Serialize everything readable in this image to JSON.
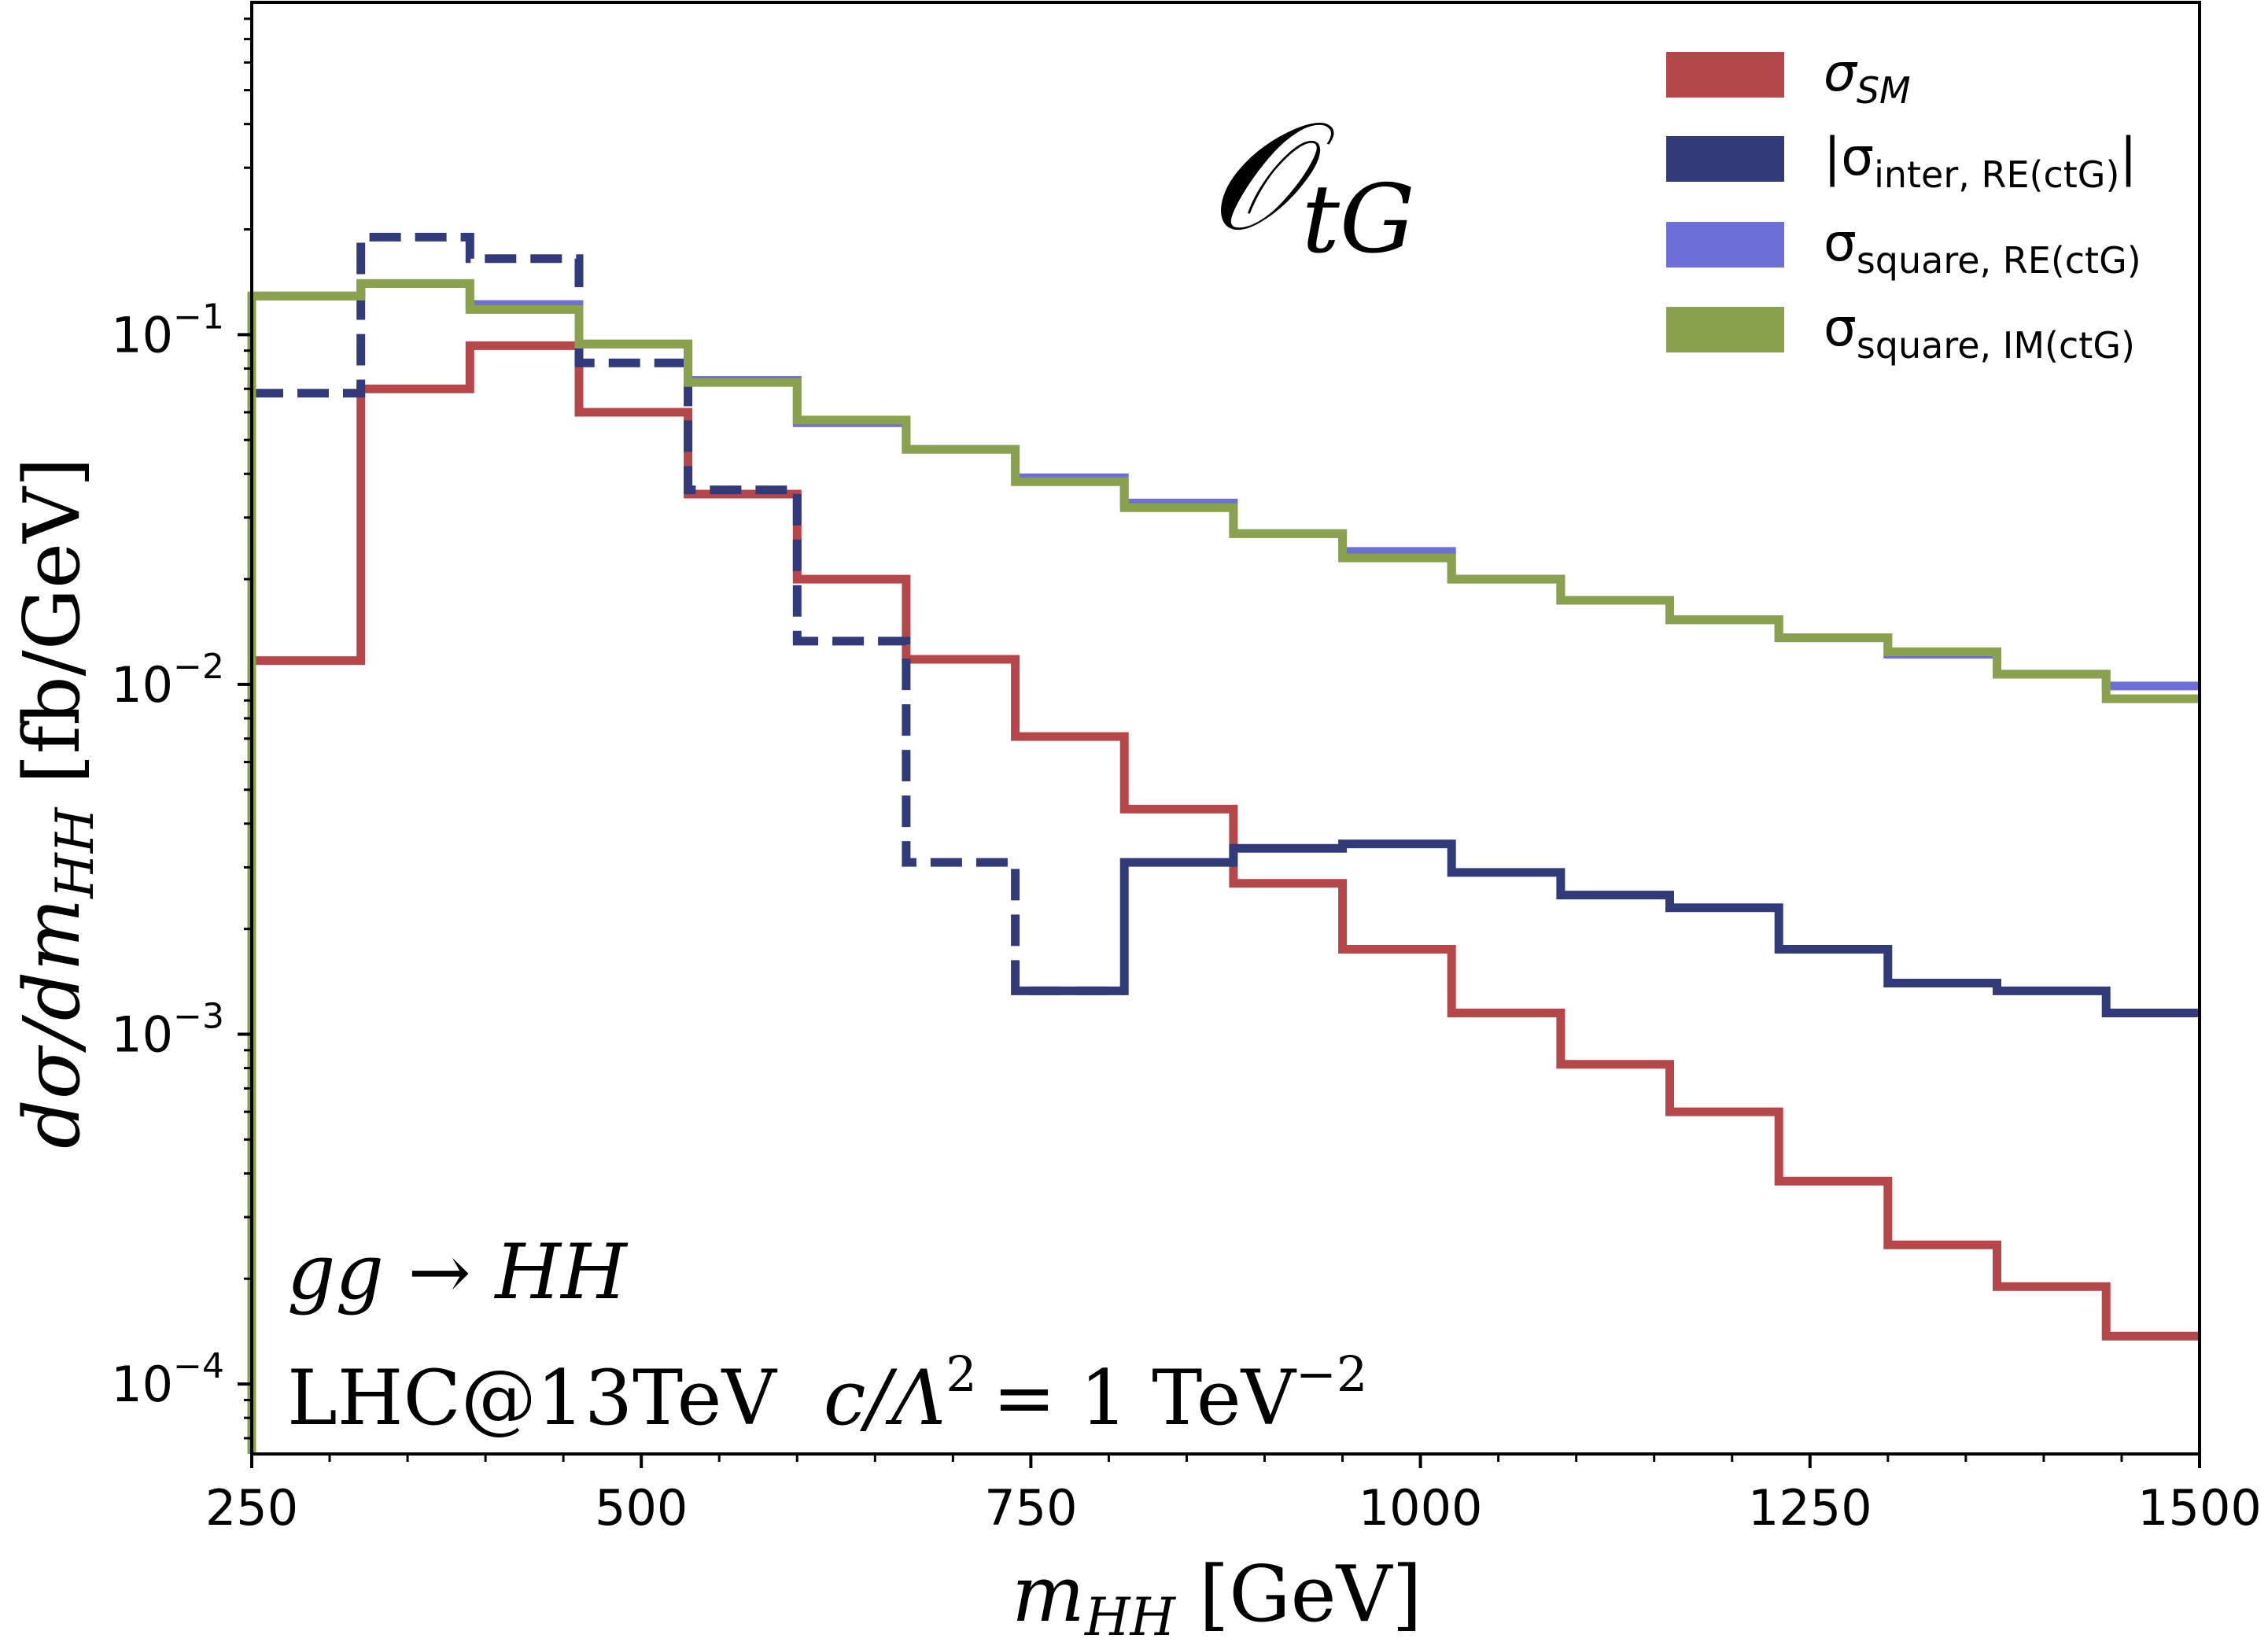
{
  "chart_data": {
    "type": "step",
    "title": "",
    "operator_label": {
      "main": "𝒪",
      "sub": "tG"
    },
    "xlabel": {
      "main": "m",
      "sub": "HH",
      "unit": "[GeV]"
    },
    "ylabel": {
      "prefix": "dσ/dm",
      "sub": "HH",
      "unit": "[fb/GeV]"
    },
    "xlim": [
      250,
      1500
    ],
    "ylim_log10": [
      -4.2,
      -0.05
    ],
    "yscale": "log",
    "x_ticks": [
      "250",
      "500",
      "750",
      "1000",
      "1250",
      "1500"
    ],
    "y_ticks": [
      {
        "base": "10",
        "exp": "−1"
      },
      {
        "base": "10",
        "exp": "−2"
      },
      {
        "base": "10",
        "exp": "−3"
      },
      {
        "base": "10",
        "exp": "−4"
      }
    ],
    "bin_edges": [
      250,
      320,
      390,
      460,
      530,
      600,
      670,
      740,
      810,
      880,
      950,
      1020,
      1090,
      1160,
      1230,
      1300,
      1370,
      1440,
      1500
    ],
    "series": [
      {
        "name": "σ_SM",
        "label_main": "σ",
        "label_sub": "SM",
        "sub_italic": true,
        "color": "#b5474a",
        "style": "solid",
        "values": [
          0.0117,
          0.07,
          0.093,
          0.06,
          0.035,
          0.02,
          0.0118,
          0.0071,
          0.0044,
          0.0027,
          0.00175,
          0.00115,
          0.00082,
          0.0006,
          0.00038,
          0.00025,
          0.00019,
          0.000137
        ]
      },
      {
        "name": "|σ_inter, RE(ctG)|",
        "label_main": "|σ",
        "label_sub": "inter, RE(ctG)",
        "label_suffix": "|",
        "color": "#333a7a",
        "style": "dashed-then-solid",
        "solid_from_bin": 7,
        "values": [
          0.068,
          0.19,
          0.165,
          0.083,
          0.036,
          0.0133,
          0.0031,
          0.00133,
          0.0031,
          0.0034,
          0.0035,
          0.0029,
          0.0025,
          0.0023,
          0.00175,
          0.0014,
          0.00133,
          0.00115
        ]
      },
      {
        "name": "σ_square, RE(ctG)",
        "label_main": "σ",
        "label_sub": "square, RE(ctG)",
        "color": "#6d6fd6",
        "style": "solid",
        "values": [
          0.129,
          0.14,
          0.122,
          0.094,
          0.074,
          0.056,
          0.047,
          0.039,
          0.033,
          0.027,
          0.024,
          0.02,
          0.0174,
          0.0153,
          0.0136,
          0.0122,
          0.0107,
          0.0099
        ]
      },
      {
        "name": "σ_square, IM(ctG)",
        "label_main": "σ",
        "label_sub": "square, IM(ctG)",
        "color": "#8aa24d",
        "style": "solid",
        "values": [
          0.129,
          0.14,
          0.118,
          0.094,
          0.073,
          0.057,
          0.047,
          0.038,
          0.032,
          0.027,
          0.023,
          0.02,
          0.0174,
          0.0153,
          0.0136,
          0.0124,
          0.0107,
          0.0091
        ]
      }
    ],
    "annotations": {
      "process": "gg → HH",
      "collider": "LHC@13TeV",
      "coupling_lhs": "c/Λ",
      "coupling_lhs_exp": "2",
      "coupling_rhs": "= 1 TeV",
      "coupling_rhs_exp": "−2"
    },
    "legend_position": "top-right"
  }
}
